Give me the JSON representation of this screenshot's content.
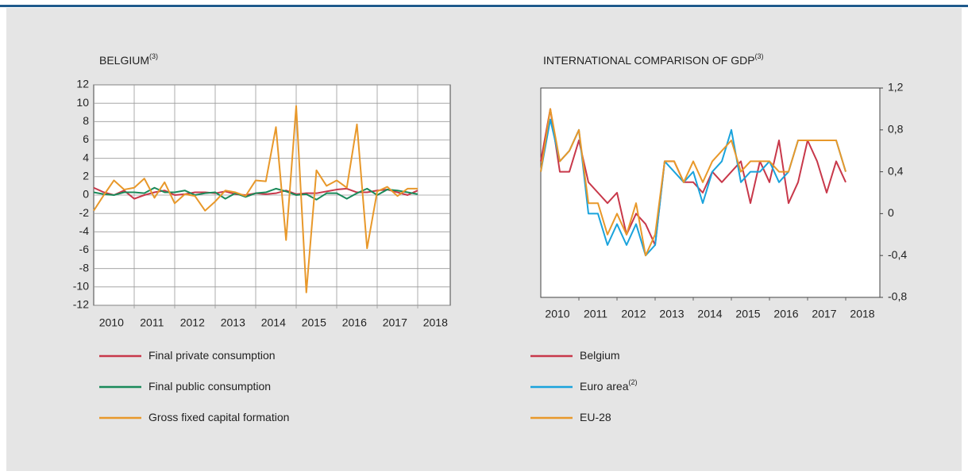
{
  "chart_data": [
    {
      "type": "line",
      "title": "BELGIUM",
      "title_note": "(3)",
      "categories": [
        "2010",
        null,
        null,
        null,
        "2011",
        null,
        null,
        null,
        "2012",
        null,
        null,
        null,
        "2013",
        null,
        null,
        null,
        "2014",
        null,
        null,
        null,
        "2015",
        null,
        null,
        null,
        "2016",
        null,
        null,
        null,
        "2017",
        null,
        null,
        null,
        "2018"
      ],
      "ylim": [
        -12,
        12
      ],
      "yticks": [
        -12,
        -10,
        -8,
        -6,
        -4,
        -2,
        0,
        2,
        4,
        6,
        8,
        10,
        12
      ],
      "grid": true,
      "yaxis_position": "left",
      "series": [
        {
          "name": "Final private consumption",
          "color": "#c8384a",
          "values": [
            0.8,
            0.3,
            0,
            0.5,
            -0.4,
            0,
            0.3,
            0.5,
            0,
            0.1,
            0.3,
            0.3,
            0.2,
            0.4,
            0.1,
            0,
            0.2,
            0.1,
            0.2,
            0.5,
            0.1,
            0.2,
            0.2,
            0.4,
            0.6,
            0.7,
            0.3,
            0.3,
            0.5,
            0.6,
            0.3,
            0,
            0.5
          ]
        },
        {
          "name": "Final public consumption",
          "color": "#1a8a5a",
          "values": [
            0.3,
            0.1,
            0,
            0.3,
            0.3,
            0.2,
            0.8,
            0.3,
            0.3,
            0.5,
            0,
            0.2,
            0.3,
            -0.4,
            0.2,
            -0.2,
            0.2,
            0.3,
            0.7,
            0.4,
            0,
            0.1,
            -0.5,
            0.2,
            0.2,
            -0.4,
            0.2,
            0.7,
            0,
            0.6,
            0.5,
            0.3,
            0.1
          ]
        },
        {
          "name": "Gross fixed capital formation",
          "color": "#e8982a",
          "values": [
            -1.7,
            0,
            1.6,
            0.6,
            0.8,
            1.8,
            -0.3,
            1.4,
            -0.9,
            0.1,
            -0.1,
            -1.7,
            -0.7,
            0.5,
            0.3,
            -0.1,
            1.6,
            1.5,
            7.4,
            -4.9,
            9.7,
            -10.6,
            2.7,
            1.0,
            1.6,
            0.8,
            7.7,
            -5.8,
            0.4,
            0.9,
            -0.1,
            0.7,
            0.7
          ]
        }
      ]
    },
    {
      "type": "line",
      "title": "INTERNATIONAL COMPARISON OF GDP",
      "title_note": "(3)",
      "categories": [
        "2010",
        null,
        null,
        null,
        "2011",
        null,
        null,
        null,
        "2012",
        null,
        null,
        null,
        "2013",
        null,
        null,
        null,
        "2014",
        null,
        null,
        null,
        "2015",
        null,
        null,
        null,
        "2016",
        null,
        null,
        null,
        "2017",
        null,
        null,
        null,
        "2018"
      ],
      "ylim": [
        -0.8,
        1.2
      ],
      "yticks": [
        {
          "value": -0.8,
          "label": "-0,8"
        },
        {
          "value": -0.4,
          "label": "-0,4"
        },
        0,
        {
          "value": 0.4,
          "label": "0,4"
        },
        {
          "value": 0.8,
          "label": "0,8"
        },
        {
          "value": 1.2,
          "label": "1,2"
        }
      ],
      "grid": false,
      "yaxis_position": "right",
      "series": [
        {
          "name": "Belgium",
          "color": "#c8384a",
          "values": [
            0.5,
            1.0,
            0.4,
            0.4,
            0.7,
            0.3,
            0.2,
            0.1,
            0.2,
            -0.2,
            0,
            -0.1,
            -0.3,
            0.5,
            0.5,
            0.3,
            0.3,
            0.2,
            0.4,
            0.3,
            0.4,
            0.5,
            0.1,
            0.5,
            0.3,
            0.7,
            0.1,
            0.3,
            0.7,
            0.5,
            0.2,
            0.5,
            0.3
          ]
        },
        {
          "name": "Euro area",
          "name_note": "(2)",
          "color": "#1aa3dc",
          "values": [
            0.4,
            0.9,
            0.5,
            0.6,
            0.8,
            0,
            0,
            -0.3,
            -0.1,
            -0.3,
            -0.1,
            -0.4,
            -0.3,
            0.5,
            0.4,
            0.3,
            0.4,
            0.1,
            0.4,
            0.5,
            0.8,
            0.3,
            0.4,
            0.4,
            0.5,
            0.3,
            0.4,
            0.7,
            0.7,
            0.7,
            0.7,
            0.7,
            0.4
          ]
        },
        {
          "name": "EU-28",
          "color": "#e8982a",
          "values": [
            0.4,
            1.0,
            0.5,
            0.6,
            0.8,
            0.1,
            0.1,
            -0.2,
            0,
            -0.2,
            0.1,
            -0.4,
            -0.2,
            0.5,
            0.5,
            0.3,
            0.5,
            0.3,
            0.5,
            0.6,
            0.7,
            0.4,
            0.5,
            0.5,
            0.5,
            0.4,
            0.4,
            0.7,
            0.7,
            0.7,
            0.7,
            0.7,
            0.4
          ]
        }
      ]
    }
  ]
}
